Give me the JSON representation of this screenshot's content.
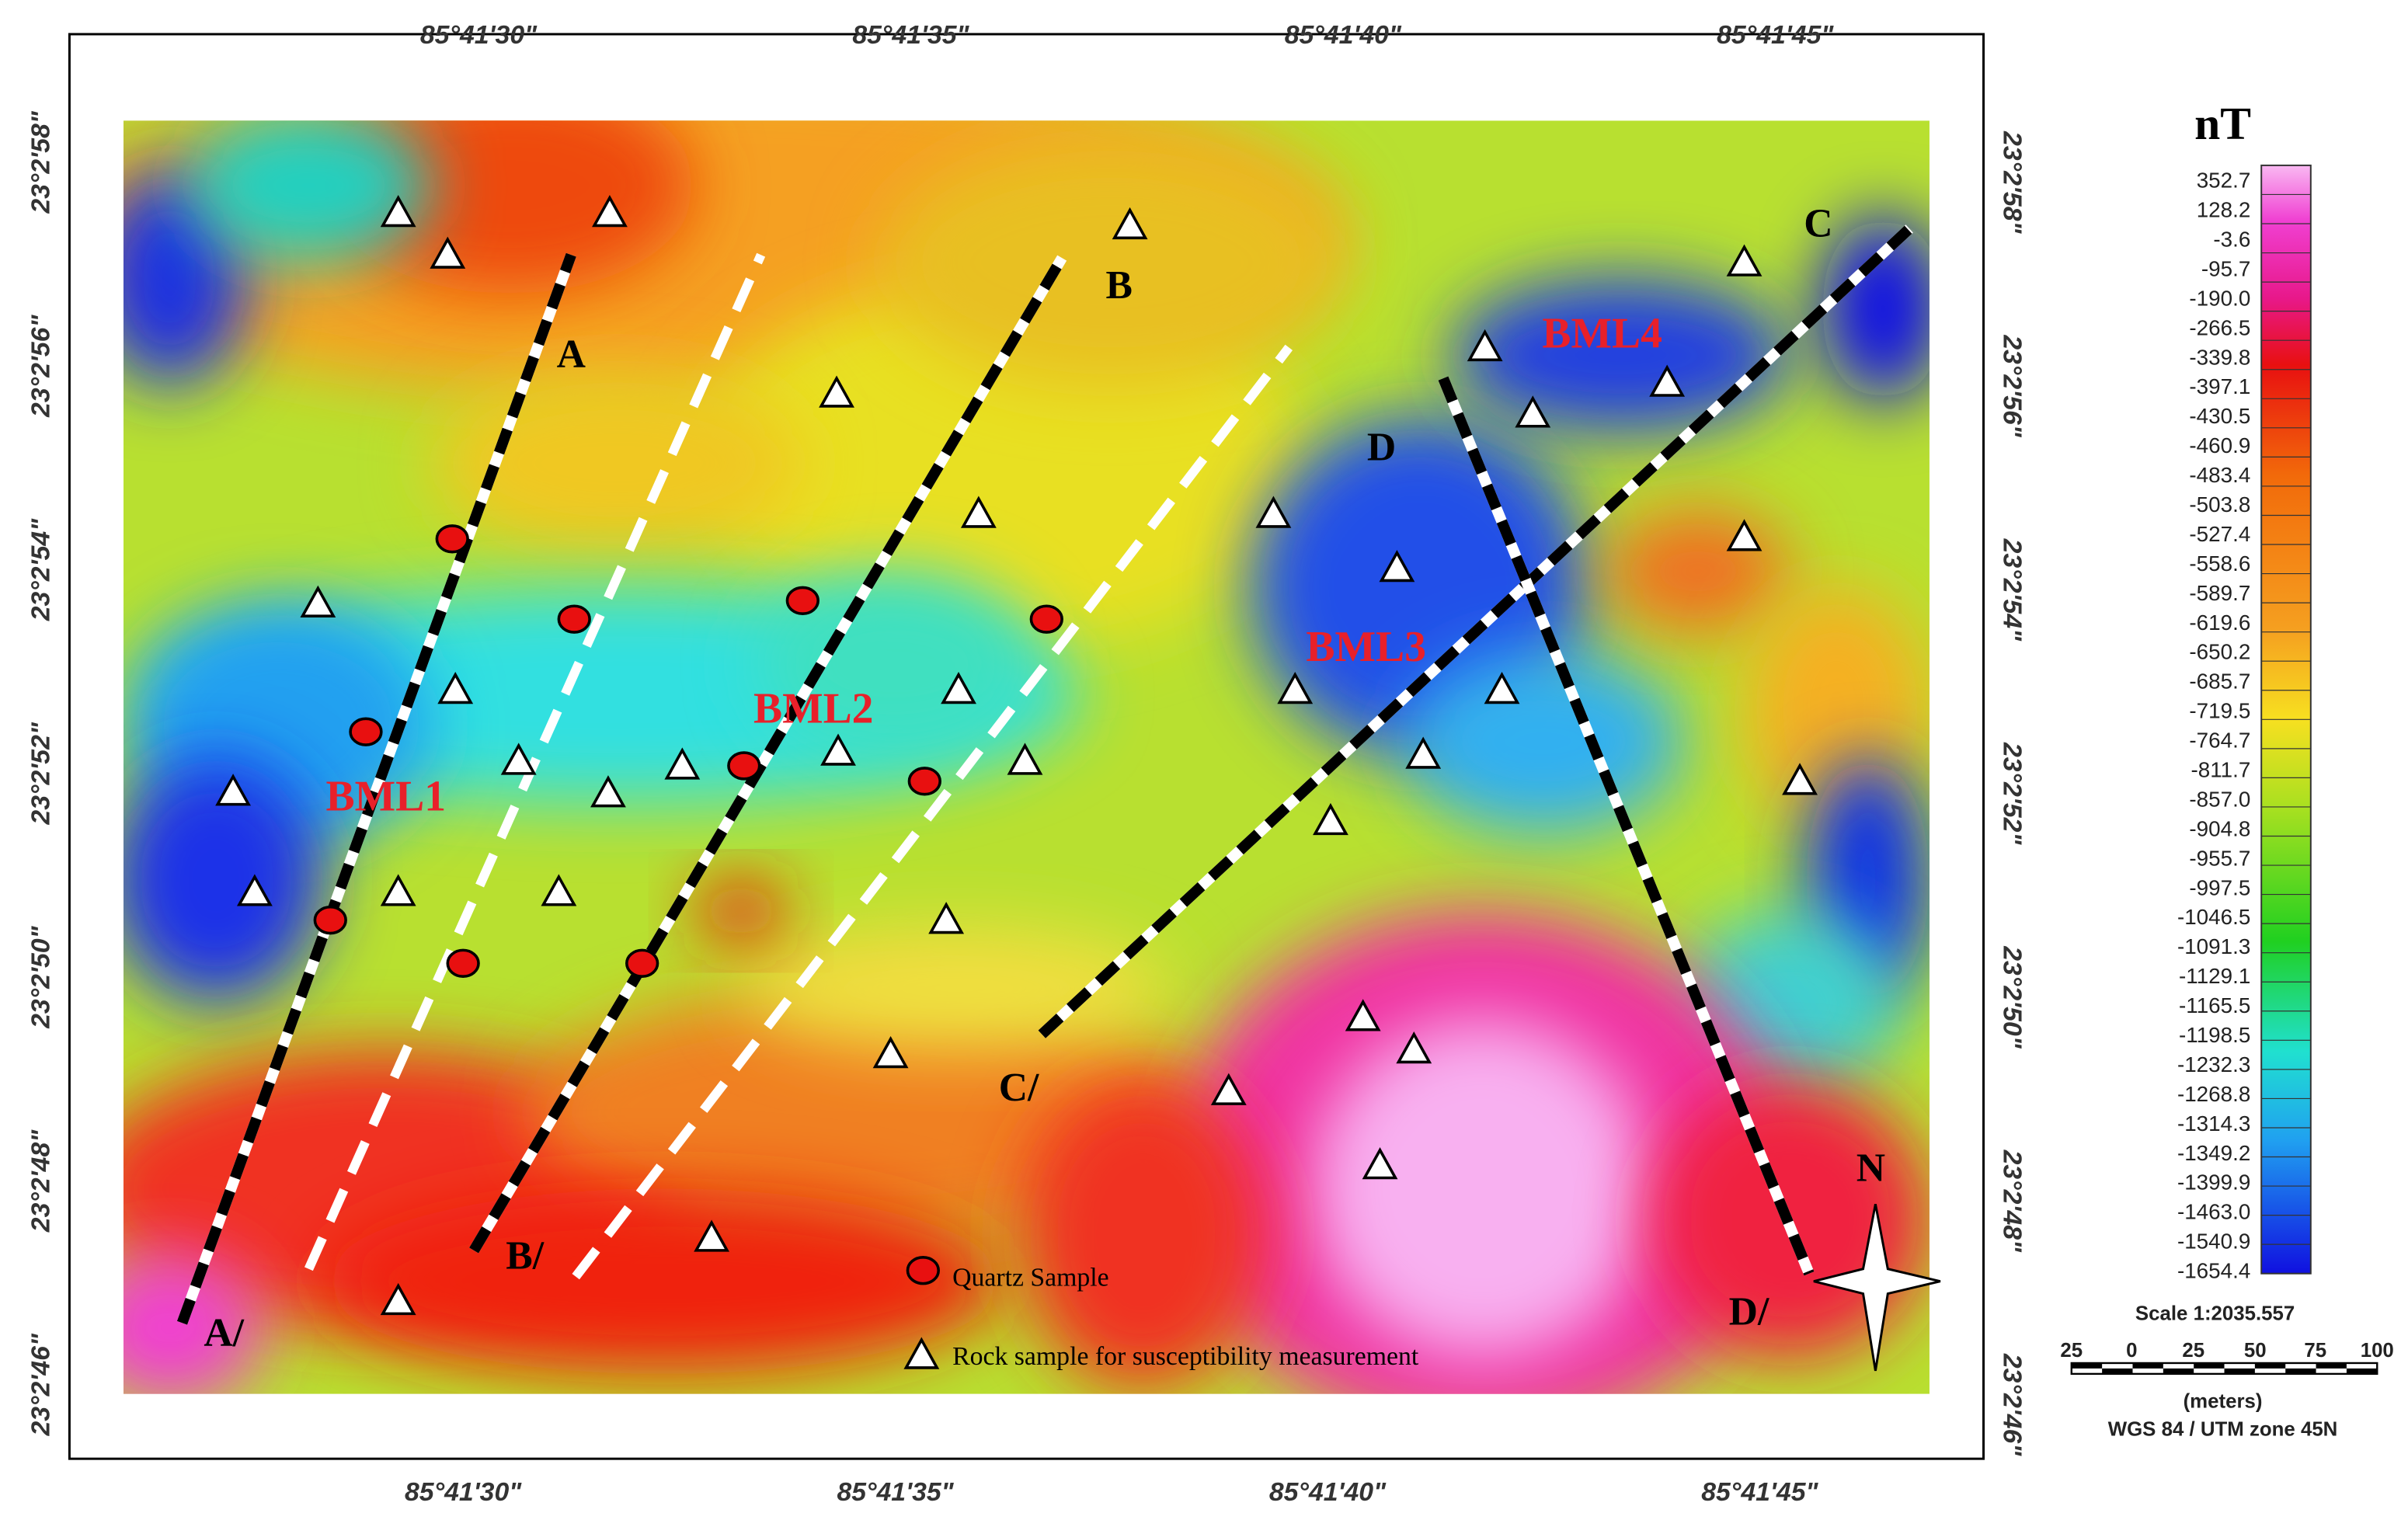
{
  "map": {
    "lon_labels": [
      "85°41'30\"",
      "85°41'35\"",
      "85°41'40\"",
      "85°41'45\""
    ],
    "lat_labels": [
      "23°2'58\"",
      "23°2'56\"",
      "23°2'54\"",
      "23°2'52\"",
      "23°2'50\"",
      "23°2'48\"",
      "23°2'46\""
    ],
    "profile_labels": [
      "A",
      "A/",
      "B",
      "B/",
      "C",
      "C/",
      "D",
      "D/"
    ],
    "zones": [
      "BML1",
      "BML2",
      "BML3",
      "BML4"
    ],
    "north": "N",
    "legend_items": [
      "Quartz Sample",
      "Rock sample for susceptibility measurement"
    ]
  },
  "colorbar": {
    "title": "nT",
    "labels": [
      "352.7",
      "128.2",
      "-3.6",
      "-95.7",
      "-190.0",
      "-266.5",
      "-339.8",
      "-397.1",
      "-430.5",
      "-460.9",
      "-483.4",
      "-503.8",
      "-527.4",
      "-558.6",
      "-589.7",
      "-619.6",
      "-650.2",
      "-685.7",
      "-719.5",
      "-764.7",
      "-811.7",
      "-857.0",
      "-904.8",
      "-955.7",
      "-997.5",
      "-1046.5",
      "-1091.3",
      "-1129.1",
      "-1165.5",
      "-1198.5",
      "-1232.3",
      "-1268.8",
      "-1314.3",
      "-1349.2",
      "-1399.9",
      "-1463.0",
      "-1540.9",
      "-1654.4"
    ]
  },
  "scale": {
    "title": "Scale 1:2035.557",
    "ticks": [
      "25",
      "0",
      "25",
      "50",
      "75",
      "100"
    ],
    "unit": "(meters)",
    "projection": "WGS 84 / UTM zone 45N"
  }
}
